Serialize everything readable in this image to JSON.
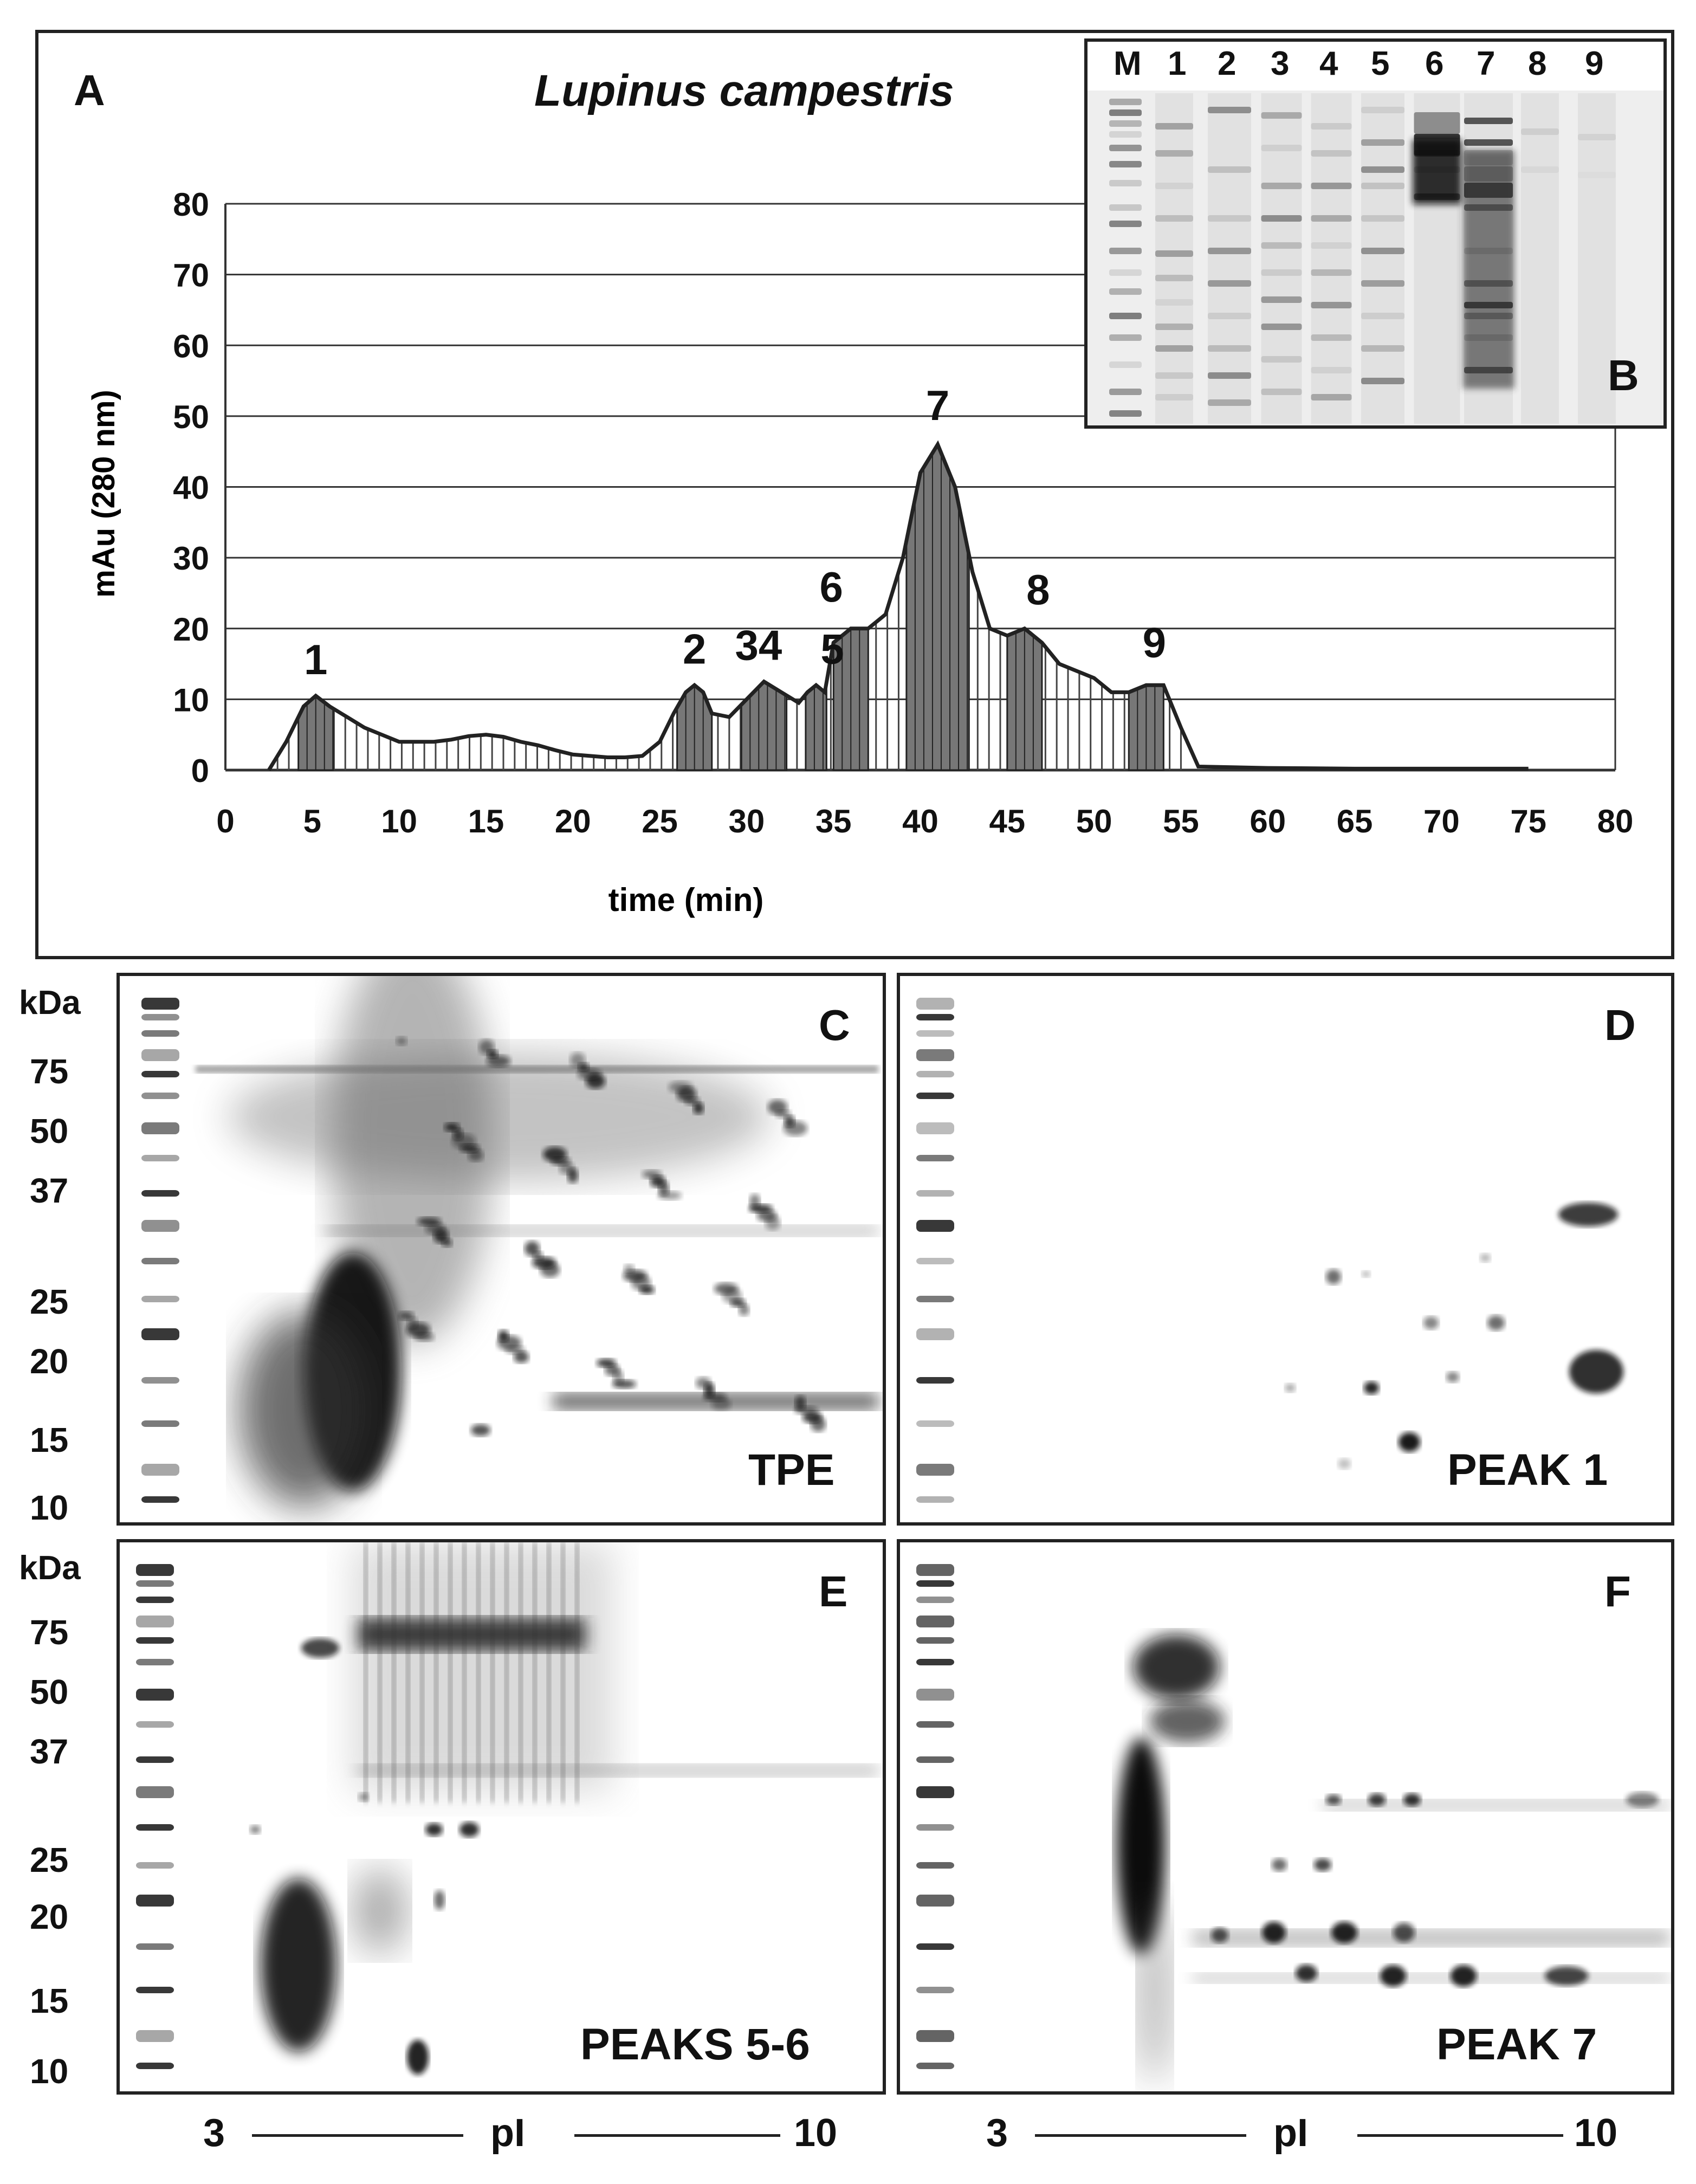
{
  "panel_a": {
    "letter": "A",
    "title": "Lupinus campestris",
    "chart_data": {
      "type": "area",
      "xlabel": "time (min)",
      "ylabel": "mAu (280 nm)",
      "xlim": [
        0,
        80
      ],
      "ylim": [
        0,
        80
      ],
      "x_ticks": [
        "0",
        "5",
        "10",
        "15",
        "20",
        "25",
        "30",
        "35",
        "40",
        "45",
        "50",
        "55",
        "60",
        "65",
        "70",
        "75",
        "80"
      ],
      "y_ticks": [
        "0",
        "10",
        "20",
        "30",
        "40",
        "50",
        "60",
        "70",
        "80"
      ],
      "grid": true,
      "series": [
        {
          "x": [
            2.5,
            3.5,
            4.5,
            5.2,
            6,
            7,
            8,
            9,
            10,
            11,
            12,
            13,
            14,
            15,
            16,
            17,
            18,
            19,
            20,
            21,
            22,
            23,
            24,
            25,
            25.8,
            26.5,
            27,
            27.5,
            28,
            29,
            30,
            31,
            32,
            33,
            33.5,
            34,
            34.5,
            35,
            36,
            37,
            38,
            39,
            40,
            41,
            42,
            43,
            44,
            45,
            46,
            47,
            48,
            49,
            50,
            51,
            52,
            53,
            54,
            55,
            56,
            60,
            65,
            70,
            75
          ],
          "y": [
            0,
            4,
            9,
            10.5,
            9,
            7.5,
            6,
            5,
            4,
            4,
            4,
            4.3,
            4.8,
            5,
            4.7,
            4,
            3.5,
            2.8,
            2.2,
            2,
            1.8,
            1.8,
            2,
            4,
            8,
            11,
            12,
            11,
            8,
            7.5,
            10,
            12.5,
            11,
            9.5,
            11,
            12,
            11,
            18,
            20,
            20,
            22,
            30,
            42,
            46,
            40,
            28,
            20,
            19,
            20,
            18,
            15,
            14,
            13,
            11,
            11,
            12,
            12,
            6,
            0.5,
            0.3,
            0.2,
            0.2,
            0.2
          ]
        }
      ],
      "peaks": [
        {
          "label": "1",
          "x": 5.2,
          "y": 10.5
        },
        {
          "label": "2",
          "x": 27,
          "y": 12
        },
        {
          "label": "34",
          "x": 31,
          "y": 12.5
        },
        {
          "label": "5",
          "x": 34,
          "y": 12
        },
        {
          "label": "6",
          "x": 35.5,
          "y": 20
        },
        {
          "label": "7",
          "x": 41,
          "y": 46
        },
        {
          "label": "8",
          "x": 46,
          "y": 20
        },
        {
          "label": "9",
          "x": 53,
          "y": 12.5
        }
      ]
    }
  },
  "panel_b": {
    "letter": "B",
    "lanes": [
      "M",
      "1",
      "2",
      "3",
      "4",
      "5",
      "6",
      "7",
      "8",
      "9"
    ]
  },
  "gels": {
    "kda_label": "kDa",
    "kda_markers": [
      "75",
      "50",
      "37",
      "25",
      "20",
      "15",
      "10"
    ],
    "pi_start": "3",
    "pi_label": "pI",
    "pi_end": "10",
    "panels": [
      {
        "letter": "C",
        "name": "TPE"
      },
      {
        "letter": "D",
        "name": "PEAK 1"
      },
      {
        "letter": "E",
        "name": "PEAKS 5-6"
      },
      {
        "letter": "F",
        "name": "PEAK 7"
      }
    ]
  }
}
